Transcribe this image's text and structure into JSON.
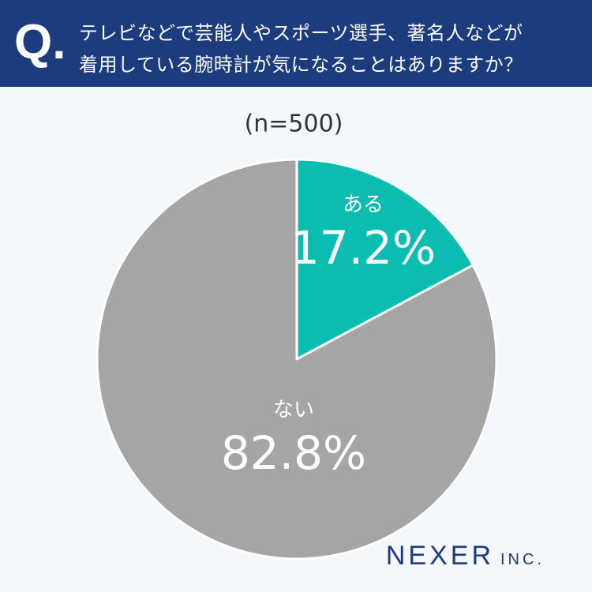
{
  "header": {
    "mark": "Q.",
    "title": [
      "テレビなどで芸能人やスポーツ選手、著名人などが",
      "着用している腕時計が気になることはありますか？"
    ]
  },
  "chart_data": {
    "type": "pie",
    "subtitle": "(n=500)",
    "categories": [
      "ある",
      "ない"
    ],
    "values": [
      17.2,
      82.8
    ],
    "value_labels": [
      "17.2%",
      "82.8%"
    ],
    "colors": [
      "#0bbcb0",
      "#a5a5a5"
    ]
  },
  "brand": {
    "name": "NEXER",
    "suffix": "INC."
  }
}
